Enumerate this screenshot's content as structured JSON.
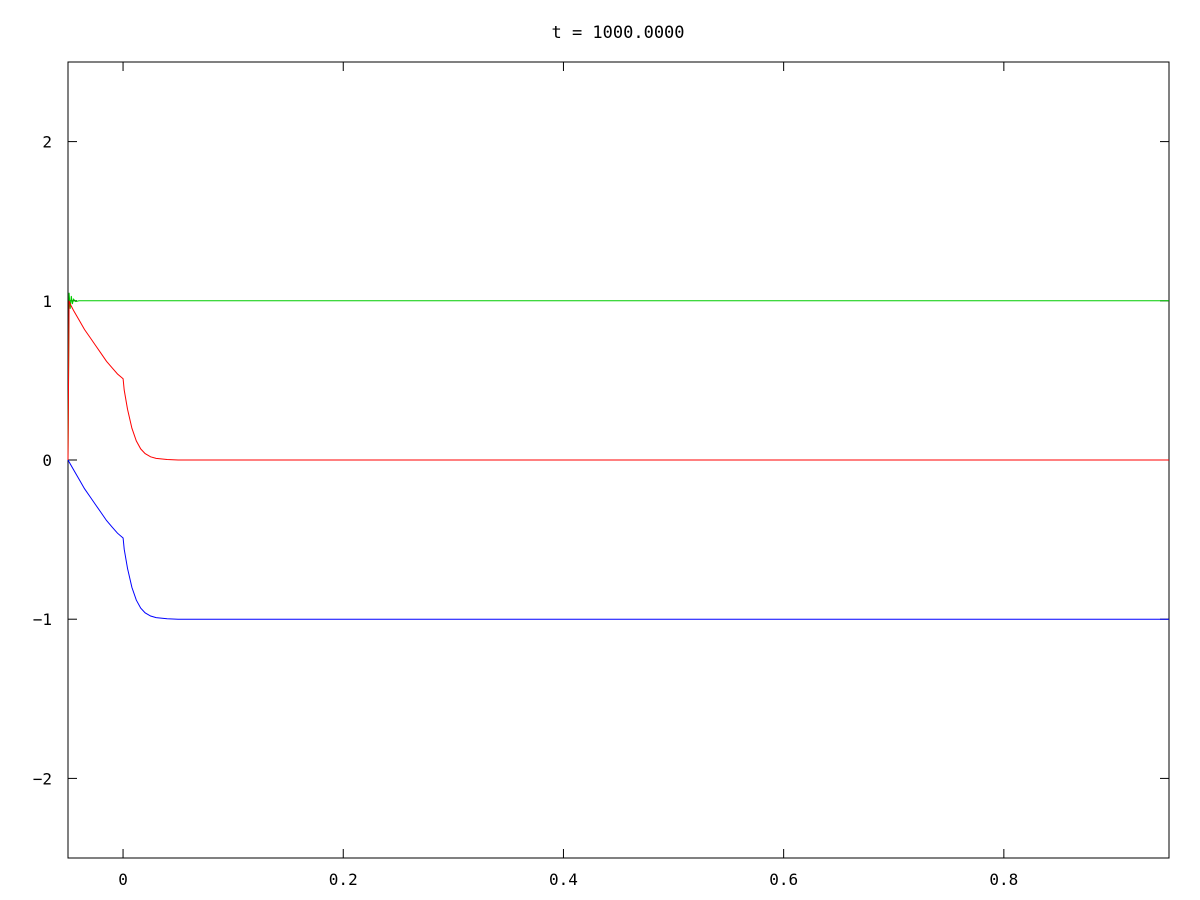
{
  "chart_data": {
    "type": "line",
    "title": "t = 1000.0000",
    "xlabel": "",
    "ylabel": "",
    "xlim": [
      -0.05,
      0.95
    ],
    "ylim": [
      -2.5,
      2.5
    ],
    "xticks": [
      0,
      0.2,
      0.4,
      0.6,
      0.8
    ],
    "xtick_labels": [
      "0",
      "0.2",
      "0.4",
      "0.6",
      "0.8"
    ],
    "yticks": [
      -2,
      -1,
      0,
      1,
      2
    ],
    "ytick_labels": [
      "−2",
      "−1",
      "0",
      "1",
      "2"
    ],
    "grid": false,
    "legend": "none",
    "series": [
      {
        "color": "#00cc00",
        "x": [
          -0.05,
          -0.049,
          -0.048,
          -0.047,
          -0.046,
          -0.045,
          -0.043,
          -0.04,
          0.0,
          0.95
        ],
        "y": [
          0.0,
          1.05,
          0.95,
          1.03,
          0.98,
          1.01,
          0.995,
          1.0,
          1.0,
          1.0
        ]
      },
      {
        "color": "#ff0000",
        "x": [
          -0.05,
          -0.049,
          -0.048,
          -0.045,
          -0.04,
          -0.035,
          -0.03,
          -0.025,
          -0.02,
          -0.015,
          -0.01,
          -0.005,
          0.0,
          0.001,
          0.004,
          0.008,
          0.012,
          0.016,
          0.02,
          0.025,
          0.03,
          0.04,
          0.05,
          0.95
        ],
        "y": [
          0.0,
          1.0,
          0.98,
          0.94,
          0.88,
          0.82,
          0.77,
          0.72,
          0.67,
          0.62,
          0.58,
          0.54,
          0.51,
          0.44,
          0.32,
          0.2,
          0.12,
          0.07,
          0.04,
          0.02,
          0.01,
          0.003,
          0.0,
          0.0
        ]
      },
      {
        "color": "#0000ff",
        "x": [
          -0.05,
          -0.045,
          -0.04,
          -0.035,
          -0.03,
          -0.025,
          -0.02,
          -0.015,
          -0.01,
          -0.005,
          0.0,
          0.001,
          0.004,
          0.008,
          0.012,
          0.016,
          0.02,
          0.025,
          0.03,
          0.04,
          0.05,
          0.95
        ],
        "y": [
          0.0,
          -0.06,
          -0.12,
          -0.18,
          -0.23,
          -0.28,
          -0.33,
          -0.38,
          -0.42,
          -0.46,
          -0.49,
          -0.56,
          -0.68,
          -0.8,
          -0.88,
          -0.93,
          -0.96,
          -0.98,
          -0.99,
          -0.997,
          -1.0,
          -1.0
        ]
      }
    ]
  }
}
